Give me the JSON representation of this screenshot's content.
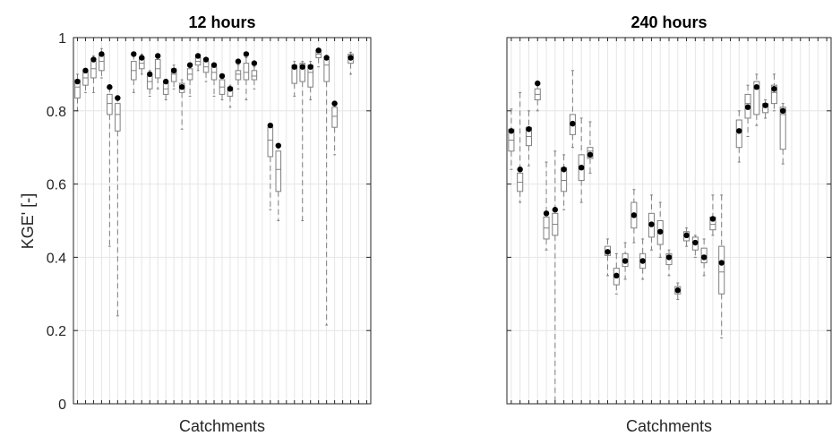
{
  "figure": {
    "ylabel": "KGE' [-]",
    "colors": {
      "box": "#7f7f7f",
      "whisker": "#7f7f7f",
      "grid": "#e6e6e6",
      "axis": "#262626",
      "marker": "#000000"
    }
  },
  "chart_data": [
    {
      "type": "box",
      "title": "12 hours",
      "xlabel": "Catchments",
      "ylabel": "KGE' [-]",
      "ylim": [
        0,
        1
      ],
      "yticks": [
        "0",
        "0.2",
        "0.4",
        "0.6",
        "0.8",
        "1"
      ],
      "grid": true,
      "n_slots": 37,
      "boxes": [
        {
          "slot": 1,
          "min": 0.8,
          "q1": 0.835,
          "med": 0.865,
          "q3": 0.885,
          "max": 0.9,
          "marker": 0.88
        },
        {
          "slot": 2,
          "min": 0.85,
          "q1": 0.87,
          "med": 0.89,
          "q3": 0.905,
          "max": 0.915,
          "marker": 0.91
        },
        {
          "slot": 3,
          "min": 0.85,
          "q1": 0.89,
          "med": 0.915,
          "q3": 0.935,
          "max": 0.95,
          "marker": 0.94
        },
        {
          "slot": 4,
          "min": 0.89,
          "q1": 0.91,
          "med": 0.935,
          "q3": 0.955,
          "max": 0.97,
          "marker": 0.955
        },
        {
          "slot": 5,
          "min": 0.43,
          "q1": 0.79,
          "med": 0.82,
          "q3": 0.845,
          "max": 0.865,
          "marker": 0.865
        },
        {
          "slot": 6,
          "min": 0.24,
          "q1": 0.745,
          "med": 0.79,
          "q3": 0.82,
          "max": 0.84,
          "marker": 0.835
        },
        {
          "slot": 8,
          "min": 0.85,
          "q1": 0.885,
          "med": 0.91,
          "q3": 0.935,
          "max": 0.955,
          "marker": 0.955
        },
        {
          "slot": 9,
          "min": 0.9,
          "q1": 0.915,
          "med": 0.93,
          "q3": 0.945,
          "max": 0.955,
          "marker": 0.945
        },
        {
          "slot": 10,
          "min": 0.84,
          "q1": 0.86,
          "med": 0.88,
          "q3": 0.895,
          "max": 0.91,
          "marker": 0.9
        },
        {
          "slot": 11,
          "min": 0.86,
          "q1": 0.89,
          "med": 0.915,
          "q3": 0.94,
          "max": 0.955,
          "marker": 0.95
        },
        {
          "slot": 12,
          "min": 0.83,
          "q1": 0.845,
          "med": 0.86,
          "q3": 0.875,
          "max": 0.885,
          "marker": 0.88
        },
        {
          "slot": 13,
          "min": 0.86,
          "q1": 0.88,
          "med": 0.9,
          "q3": 0.915,
          "max": 0.925,
          "marker": 0.91
        },
        {
          "slot": 14,
          "min": 0.75,
          "q1": 0.85,
          "med": 0.86,
          "q3": 0.875,
          "max": 0.885,
          "marker": 0.865
        },
        {
          "slot": 15,
          "min": 0.84,
          "q1": 0.885,
          "med": 0.9,
          "q3": 0.915,
          "max": 0.925,
          "marker": 0.925
        },
        {
          "slot": 16,
          "min": 0.91,
          "q1": 0.925,
          "med": 0.935,
          "q3": 0.945,
          "max": 0.955,
          "marker": 0.95
        },
        {
          "slot": 17,
          "min": 0.88,
          "q1": 0.905,
          "med": 0.92,
          "q3": 0.935,
          "max": 0.94,
          "marker": 0.94
        },
        {
          "slot": 18,
          "min": 0.84,
          "q1": 0.885,
          "med": 0.905,
          "q3": 0.92,
          "max": 0.93,
          "marker": 0.925
        },
        {
          "slot": 19,
          "min": 0.83,
          "q1": 0.845,
          "med": 0.865,
          "q3": 0.885,
          "max": 0.9,
          "marker": 0.895
        },
        {
          "slot": 20,
          "min": 0.81,
          "q1": 0.84,
          "med": 0.855,
          "q3": 0.865,
          "max": 0.87,
          "marker": 0.86
        },
        {
          "slot": 21,
          "min": 0.86,
          "q1": 0.885,
          "med": 0.9,
          "q3": 0.91,
          "max": 0.925,
          "marker": 0.935
        },
        {
          "slot": 22,
          "min": 0.83,
          "q1": 0.885,
          "med": 0.905,
          "q3": 0.93,
          "max": 0.945,
          "marker": 0.955
        },
        {
          "slot": 23,
          "min": 0.86,
          "q1": 0.885,
          "med": 0.895,
          "q3": 0.91,
          "max": 0.92,
          "marker": 0.93
        },
        {
          "slot": 25,
          "min": 0.53,
          "q1": 0.675,
          "med": 0.72,
          "q3": 0.755,
          "max": 0.765,
          "marker": 0.76
        },
        {
          "slot": 26,
          "min": 0.5,
          "q1": 0.58,
          "med": 0.64,
          "q3": 0.69,
          "max": 0.71,
          "marker": 0.705
        },
        {
          "slot": 28,
          "min": 0.84,
          "q1": 0.875,
          "med": 0.915,
          "q3": 0.925,
          "max": 0.935,
          "marker": 0.92
        },
        {
          "slot": 29,
          "min": 0.5,
          "q1": 0.88,
          "med": 0.92,
          "q3": 0.93,
          "max": 0.935,
          "marker": 0.92
        },
        {
          "slot": 30,
          "min": 0.83,
          "q1": 0.865,
          "med": 0.905,
          "q3": 0.925,
          "max": 0.935,
          "marker": 0.92
        },
        {
          "slot": 31,
          "min": 0.92,
          "q1": 0.945,
          "med": 0.955,
          "q3": 0.965,
          "max": 0.97,
          "marker": 0.965
        },
        {
          "slot": 32,
          "min": 0.215,
          "q1": 0.88,
          "med": 0.925,
          "q3": 0.94,
          "max": 0.95,
          "marker": 0.945
        },
        {
          "slot": 33,
          "min": 0.68,
          "q1": 0.755,
          "med": 0.785,
          "q3": 0.81,
          "max": 0.82,
          "marker": 0.82
        },
        {
          "slot": 35,
          "min": 0.9,
          "q1": 0.93,
          "med": 0.94,
          "q3": 0.955,
          "max": 0.96,
          "marker": 0.945
        }
      ]
    },
    {
      "type": "box",
      "title": "240 hours",
      "xlabel": "Catchments",
      "ylabel": "",
      "ylim": [
        0,
        1
      ],
      "yticks": [
        "0",
        "0.2",
        "0.4",
        "0.6",
        "0.8",
        "1"
      ],
      "grid": true,
      "n_slots": 37,
      "boxes": [
        {
          "slot": 1,
          "min": 0.64,
          "q1": 0.69,
          "med": 0.72,
          "q3": 0.75,
          "max": 0.805,
          "marker": 0.745
        },
        {
          "slot": 2,
          "min": 0.55,
          "q1": 0.58,
          "med": 0.605,
          "q3": 0.63,
          "max": 0.85,
          "marker": 0.64
        },
        {
          "slot": 3,
          "min": 0.65,
          "q1": 0.705,
          "med": 0.73,
          "q3": 0.755,
          "max": 0.8,
          "marker": 0.75
        },
        {
          "slot": 4,
          "min": 0.8,
          "q1": 0.83,
          "med": 0.845,
          "q3": 0.86,
          "max": 0.875,
          "marker": 0.875
        },
        {
          "slot": 5,
          "min": 0.42,
          "q1": 0.45,
          "med": 0.48,
          "q3": 0.51,
          "max": 0.66,
          "marker": 0.52
        },
        {
          "slot": 6,
          "min": 0.0,
          "q1": 0.46,
          "med": 0.49,
          "q3": 0.52,
          "max": 0.69,
          "marker": 0.53
        },
        {
          "slot": 7,
          "min": 0.53,
          "q1": 0.58,
          "med": 0.61,
          "q3": 0.645,
          "max": 0.68,
          "marker": 0.64
        },
        {
          "slot": 8,
          "min": 0.7,
          "q1": 0.735,
          "med": 0.76,
          "q3": 0.79,
          "max": 0.91,
          "marker": 0.765
        },
        {
          "slot": 9,
          "min": 0.55,
          "q1": 0.61,
          "med": 0.64,
          "q3": 0.68,
          "max": 0.78,
          "marker": 0.645
        },
        {
          "slot": 10,
          "min": 0.63,
          "q1": 0.67,
          "med": 0.69,
          "q3": 0.7,
          "max": 0.77,
          "marker": 0.68
        },
        {
          "slot": 12,
          "min": 0.35,
          "q1": 0.405,
          "med": 0.415,
          "q3": 0.43,
          "max": 0.45,
          "marker": 0.415
        },
        {
          "slot": 13,
          "min": 0.3,
          "q1": 0.325,
          "med": 0.345,
          "q3": 0.37,
          "max": 0.41,
          "marker": 0.35
        },
        {
          "slot": 14,
          "min": 0.34,
          "q1": 0.375,
          "med": 0.395,
          "q3": 0.41,
          "max": 0.44,
          "marker": 0.39
        },
        {
          "slot": 15,
          "min": 0.44,
          "q1": 0.48,
          "med": 0.51,
          "q3": 0.55,
          "max": 0.585,
          "marker": 0.515
        },
        {
          "slot": 16,
          "min": 0.34,
          "q1": 0.37,
          "med": 0.39,
          "q3": 0.41,
          "max": 0.45,
          "marker": 0.39
        },
        {
          "slot": 17,
          "min": 0.42,
          "q1": 0.455,
          "med": 0.49,
          "q3": 0.52,
          "max": 0.57,
          "marker": 0.49
        },
        {
          "slot": 18,
          "min": 0.4,
          "q1": 0.435,
          "med": 0.465,
          "q3": 0.5,
          "max": 0.55,
          "marker": 0.47
        },
        {
          "slot": 19,
          "min": 0.35,
          "q1": 0.38,
          "med": 0.4,
          "q3": 0.41,
          "max": 0.42,
          "marker": 0.4
        },
        {
          "slot": 20,
          "min": 0.285,
          "q1": 0.3,
          "med": 0.31,
          "q3": 0.32,
          "max": 0.33,
          "marker": 0.31
        },
        {
          "slot": 21,
          "min": 0.43,
          "q1": 0.445,
          "med": 0.46,
          "q3": 0.47,
          "max": 0.48,
          "marker": 0.46
        },
        {
          "slot": 22,
          "min": 0.4,
          "q1": 0.42,
          "med": 0.44,
          "q3": 0.455,
          "max": 0.46,
          "marker": 0.44
        },
        {
          "slot": 23,
          "min": 0.35,
          "q1": 0.385,
          "med": 0.405,
          "q3": 0.425,
          "max": 0.45,
          "marker": 0.4
        },
        {
          "slot": 24,
          "min": 0.46,
          "q1": 0.475,
          "med": 0.49,
          "q3": 0.51,
          "max": 0.57,
          "marker": 0.505
        },
        {
          "slot": 25,
          "min": 0.18,
          "q1": 0.3,
          "med": 0.36,
          "q3": 0.43,
          "max": 0.57,
          "marker": 0.385
        },
        {
          "slot": 27,
          "min": 0.66,
          "q1": 0.7,
          "med": 0.75,
          "q3": 0.775,
          "max": 0.8,
          "marker": 0.745
        },
        {
          "slot": 28,
          "min": 0.73,
          "q1": 0.78,
          "med": 0.82,
          "q3": 0.845,
          "max": 0.87,
          "marker": 0.81
        },
        {
          "slot": 29,
          "min": 0.76,
          "q1": 0.79,
          "med": 0.86,
          "q3": 0.88,
          "max": 0.9,
          "marker": 0.865
        },
        {
          "slot": 30,
          "min": 0.78,
          "q1": 0.795,
          "med": 0.81,
          "q3": 0.82,
          "max": 0.83,
          "marker": 0.815
        },
        {
          "slot": 31,
          "min": 0.8,
          "q1": 0.82,
          "med": 0.85,
          "q3": 0.87,
          "max": 0.9,
          "marker": 0.86
        },
        {
          "slot": 32,
          "min": 0.655,
          "q1": 0.695,
          "med": 0.79,
          "q3": 0.81,
          "max": 0.82,
          "marker": 0.8
        }
      ]
    }
  ]
}
